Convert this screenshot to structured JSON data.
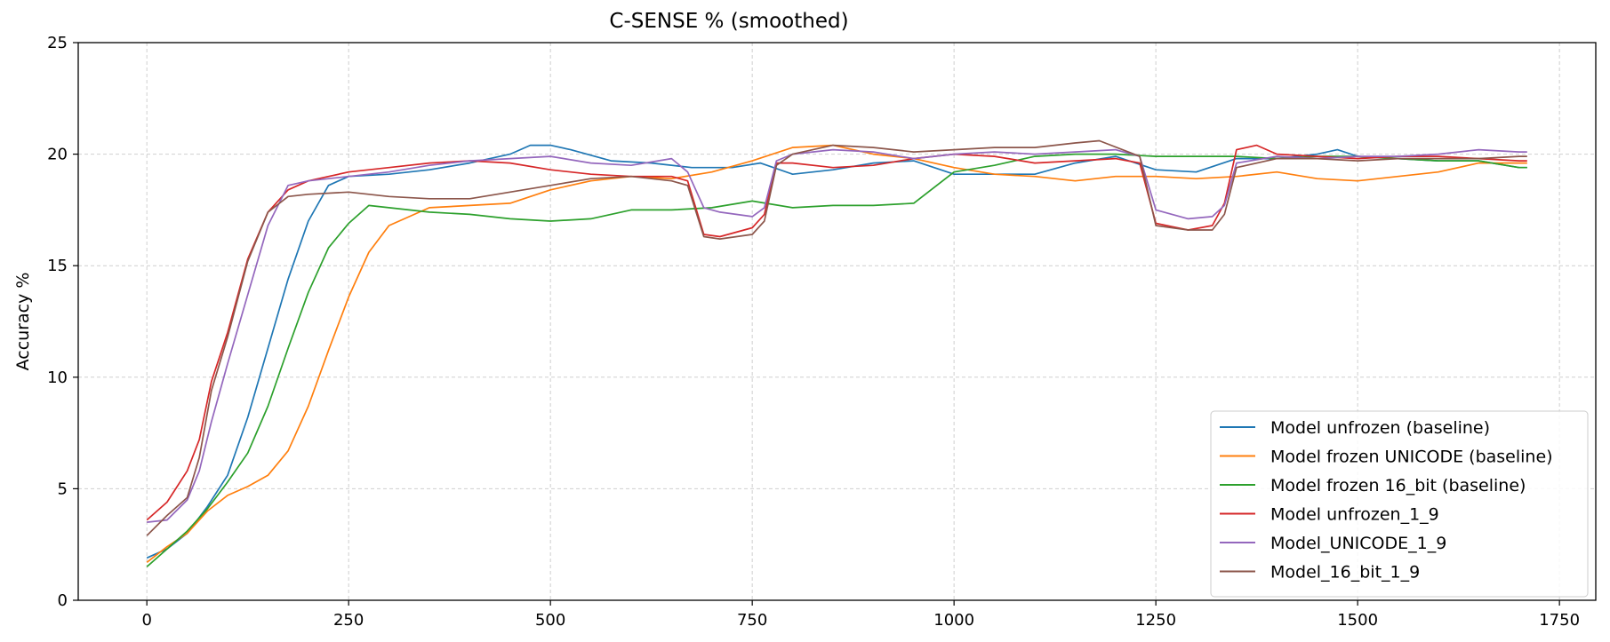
{
  "chart_data": {
    "type": "line",
    "title": "C-SENSE % (smoothed)",
    "xlabel": "",
    "ylabel": "Accuracy %",
    "xlim": [
      -85,
      1795
    ],
    "ylim": [
      0,
      25
    ],
    "x_ticks": [
      0,
      250,
      500,
      750,
      1000,
      1250,
      1500,
      1750
    ],
    "x_tick_labels": [
      "0",
      "250",
      "500",
      "750",
      "1000",
      "1250",
      "1500",
      "1750"
    ],
    "y_ticks": [
      0,
      5,
      10,
      15,
      20,
      25
    ],
    "y_tick_labels": [
      "0",
      "5",
      "10",
      "15",
      "20",
      "25"
    ],
    "grid": true,
    "legend_position": "lower-right",
    "series": [
      {
        "name": "Model unfrozen (baseline)",
        "color": "#1f77b4",
        "points": [
          [
            0,
            1.9
          ],
          [
            25,
            2.3
          ],
          [
            50,
            3.0
          ],
          [
            75,
            4.2
          ],
          [
            100,
            5.6
          ],
          [
            125,
            8.2
          ],
          [
            150,
            11.3
          ],
          [
            175,
            14.4
          ],
          [
            200,
            17.0
          ],
          [
            225,
            18.6
          ],
          [
            250,
            19.0
          ],
          [
            300,
            19.1
          ],
          [
            350,
            19.3
          ],
          [
            400,
            19.6
          ],
          [
            450,
            20.0
          ],
          [
            475,
            20.4
          ],
          [
            500,
            20.4
          ],
          [
            525,
            20.2
          ],
          [
            575,
            19.7
          ],
          [
            625,
            19.6
          ],
          [
            675,
            19.4
          ],
          [
            725,
            19.4
          ],
          [
            760,
            19.6
          ],
          [
            800,
            19.1
          ],
          [
            850,
            19.3
          ],
          [
            900,
            19.6
          ],
          [
            950,
            19.7
          ],
          [
            1000,
            19.1
          ],
          [
            1050,
            19.1
          ],
          [
            1100,
            19.1
          ],
          [
            1150,
            19.6
          ],
          [
            1200,
            19.9
          ],
          [
            1250,
            19.3
          ],
          [
            1300,
            19.2
          ],
          [
            1350,
            19.8
          ],
          [
            1400,
            19.8
          ],
          [
            1450,
            20.0
          ],
          [
            1475,
            20.2
          ],
          [
            1500,
            19.9
          ],
          [
            1550,
            19.8
          ],
          [
            1600,
            19.7
          ],
          [
            1650,
            19.7
          ],
          [
            1700,
            19.4
          ],
          [
            1710,
            19.4
          ]
        ]
      },
      {
        "name": "Model frozen UNICODE (baseline)",
        "color": "#ff7f0e",
        "points": [
          [
            0,
            1.7
          ],
          [
            25,
            2.4
          ],
          [
            50,
            3.0
          ],
          [
            75,
            4.0
          ],
          [
            100,
            4.7
          ],
          [
            125,
            5.1
          ],
          [
            150,
            5.6
          ],
          [
            175,
            6.7
          ],
          [
            200,
            8.7
          ],
          [
            225,
            11.2
          ],
          [
            250,
            13.6
          ],
          [
            275,
            15.6
          ],
          [
            300,
            16.8
          ],
          [
            350,
            17.6
          ],
          [
            400,
            17.7
          ],
          [
            450,
            17.8
          ],
          [
            500,
            18.4
          ],
          [
            550,
            18.8
          ],
          [
            600,
            19.0
          ],
          [
            650,
            18.9
          ],
          [
            700,
            19.2
          ],
          [
            750,
            19.7
          ],
          [
            800,
            20.3
          ],
          [
            850,
            20.4
          ],
          [
            900,
            20.0
          ],
          [
            950,
            19.8
          ],
          [
            1000,
            19.4
          ],
          [
            1050,
            19.1
          ],
          [
            1100,
            19.0
          ],
          [
            1150,
            18.8
          ],
          [
            1200,
            19.0
          ],
          [
            1250,
            19.0
          ],
          [
            1300,
            18.9
          ],
          [
            1350,
            19.0
          ],
          [
            1400,
            19.2
          ],
          [
            1450,
            18.9
          ],
          [
            1500,
            18.8
          ],
          [
            1550,
            19.0
          ],
          [
            1600,
            19.2
          ],
          [
            1650,
            19.6
          ],
          [
            1700,
            19.6
          ],
          [
            1710,
            19.6
          ]
        ]
      },
      {
        "name": "Model frozen 16_bit (baseline)",
        "color": "#2ca02c",
        "points": [
          [
            0,
            1.5
          ],
          [
            25,
            2.3
          ],
          [
            50,
            3.1
          ],
          [
            75,
            4.1
          ],
          [
            100,
            5.3
          ],
          [
            125,
            6.6
          ],
          [
            150,
            8.7
          ],
          [
            175,
            11.3
          ],
          [
            200,
            13.8
          ],
          [
            225,
            15.8
          ],
          [
            250,
            16.9
          ],
          [
            275,
            17.7
          ],
          [
            300,
            17.6
          ],
          [
            350,
            17.4
          ],
          [
            400,
            17.3
          ],
          [
            450,
            17.1
          ],
          [
            500,
            17.0
          ],
          [
            550,
            17.1
          ],
          [
            600,
            17.5
          ],
          [
            650,
            17.5
          ],
          [
            700,
            17.6
          ],
          [
            750,
            17.9
          ],
          [
            800,
            17.6
          ],
          [
            850,
            17.7
          ],
          [
            900,
            17.7
          ],
          [
            950,
            17.8
          ],
          [
            1000,
            19.2
          ],
          [
            1050,
            19.5
          ],
          [
            1100,
            19.9
          ],
          [
            1150,
            20.0
          ],
          [
            1200,
            20.0
          ],
          [
            1250,
            19.9
          ],
          [
            1300,
            19.9
          ],
          [
            1350,
            19.9
          ],
          [
            1400,
            19.8
          ],
          [
            1450,
            19.9
          ],
          [
            1500,
            19.9
          ],
          [
            1550,
            19.8
          ],
          [
            1600,
            19.7
          ],
          [
            1650,
            19.7
          ],
          [
            1700,
            19.4
          ],
          [
            1710,
            19.4
          ]
        ]
      },
      {
        "name": "Model unfrozen_1_9",
        "color": "#d62728",
        "points": [
          [
            0,
            3.6
          ],
          [
            25,
            4.4
          ],
          [
            50,
            5.8
          ],
          [
            65,
            7.2
          ],
          [
            80,
            9.8
          ],
          [
            100,
            12.0
          ],
          [
            125,
            15.3
          ],
          [
            150,
            17.4
          ],
          [
            175,
            18.4
          ],
          [
            200,
            18.8
          ],
          [
            250,
            19.2
          ],
          [
            300,
            19.4
          ],
          [
            350,
            19.6
          ],
          [
            400,
            19.7
          ],
          [
            450,
            19.6
          ],
          [
            500,
            19.3
          ],
          [
            550,
            19.1
          ],
          [
            600,
            19.0
          ],
          [
            650,
            19.0
          ],
          [
            670,
            18.8
          ],
          [
            690,
            16.4
          ],
          [
            710,
            16.3
          ],
          [
            750,
            16.7
          ],
          [
            765,
            17.3
          ],
          [
            780,
            19.6
          ],
          [
            800,
            19.6
          ],
          [
            850,
            19.4
          ],
          [
            900,
            19.5
          ],
          [
            950,
            19.8
          ],
          [
            1000,
            20.0
          ],
          [
            1050,
            19.9
          ],
          [
            1100,
            19.6
          ],
          [
            1150,
            19.7
          ],
          [
            1200,
            19.8
          ],
          [
            1230,
            19.6
          ],
          [
            1250,
            16.9
          ],
          [
            1290,
            16.6
          ],
          [
            1320,
            16.8
          ],
          [
            1335,
            17.8
          ],
          [
            1350,
            20.2
          ],
          [
            1375,
            20.4
          ],
          [
            1400,
            20.0
          ],
          [
            1450,
            19.9
          ],
          [
            1500,
            19.8
          ],
          [
            1550,
            19.9
          ],
          [
            1600,
            19.9
          ],
          [
            1650,
            19.8
          ],
          [
            1700,
            19.7
          ],
          [
            1710,
            19.7
          ]
        ]
      },
      {
        "name": "Model_UNICODE_1_9",
        "color": "#9467bd",
        "points": [
          [
            0,
            3.5
          ],
          [
            25,
            3.6
          ],
          [
            50,
            4.5
          ],
          [
            65,
            5.8
          ],
          [
            80,
            8.0
          ],
          [
            100,
            10.6
          ],
          [
            125,
            13.7
          ],
          [
            150,
            16.8
          ],
          [
            175,
            18.6
          ],
          [
            200,
            18.8
          ],
          [
            250,
            19.0
          ],
          [
            300,
            19.2
          ],
          [
            350,
            19.5
          ],
          [
            400,
            19.7
          ],
          [
            450,
            19.8
          ],
          [
            500,
            19.9
          ],
          [
            550,
            19.6
          ],
          [
            600,
            19.5
          ],
          [
            650,
            19.8
          ],
          [
            670,
            19.2
          ],
          [
            690,
            17.6
          ],
          [
            710,
            17.4
          ],
          [
            750,
            17.2
          ],
          [
            765,
            17.6
          ],
          [
            780,
            19.7
          ],
          [
            800,
            20.0
          ],
          [
            850,
            20.2
          ],
          [
            900,
            20.1
          ],
          [
            950,
            19.8
          ],
          [
            1000,
            20.0
          ],
          [
            1050,
            20.1
          ],
          [
            1100,
            20.0
          ],
          [
            1150,
            20.1
          ],
          [
            1200,
            20.2
          ],
          [
            1230,
            19.9
          ],
          [
            1250,
            17.5
          ],
          [
            1290,
            17.1
          ],
          [
            1320,
            17.2
          ],
          [
            1335,
            17.7
          ],
          [
            1350,
            19.6
          ],
          [
            1400,
            19.9
          ],
          [
            1450,
            19.8
          ],
          [
            1500,
            19.9
          ],
          [
            1550,
            19.9
          ],
          [
            1600,
            20.0
          ],
          [
            1650,
            20.2
          ],
          [
            1700,
            20.1
          ],
          [
            1710,
            20.1
          ]
        ]
      },
      {
        "name": "Model_16_bit_1_9",
        "color": "#8c564b",
        "points": [
          [
            0,
            2.9
          ],
          [
            25,
            3.8
          ],
          [
            50,
            4.6
          ],
          [
            65,
            6.4
          ],
          [
            80,
            9.4
          ],
          [
            100,
            11.8
          ],
          [
            125,
            15.2
          ],
          [
            150,
            17.4
          ],
          [
            175,
            18.1
          ],
          [
            200,
            18.2
          ],
          [
            250,
            18.3
          ],
          [
            300,
            18.1
          ],
          [
            350,
            18.0
          ],
          [
            400,
            18.0
          ],
          [
            450,
            18.3
          ],
          [
            500,
            18.6
          ],
          [
            550,
            18.9
          ],
          [
            600,
            19.0
          ],
          [
            650,
            18.8
          ],
          [
            670,
            18.6
          ],
          [
            690,
            16.3
          ],
          [
            710,
            16.2
          ],
          [
            750,
            16.4
          ],
          [
            765,
            17.0
          ],
          [
            780,
            19.5
          ],
          [
            800,
            20.0
          ],
          [
            850,
            20.4
          ],
          [
            900,
            20.3
          ],
          [
            950,
            20.1
          ],
          [
            1000,
            20.2
          ],
          [
            1050,
            20.3
          ],
          [
            1100,
            20.3
          ],
          [
            1150,
            20.5
          ],
          [
            1180,
            20.6
          ],
          [
            1230,
            19.9
          ],
          [
            1250,
            16.8
          ],
          [
            1290,
            16.6
          ],
          [
            1320,
            16.6
          ],
          [
            1335,
            17.3
          ],
          [
            1350,
            19.4
          ],
          [
            1400,
            19.8
          ],
          [
            1450,
            19.8
          ],
          [
            1500,
            19.7
          ],
          [
            1550,
            19.8
          ],
          [
            1600,
            19.8
          ],
          [
            1650,
            19.8
          ],
          [
            1700,
            19.9
          ],
          [
            1710,
            19.9
          ]
        ]
      }
    ]
  }
}
